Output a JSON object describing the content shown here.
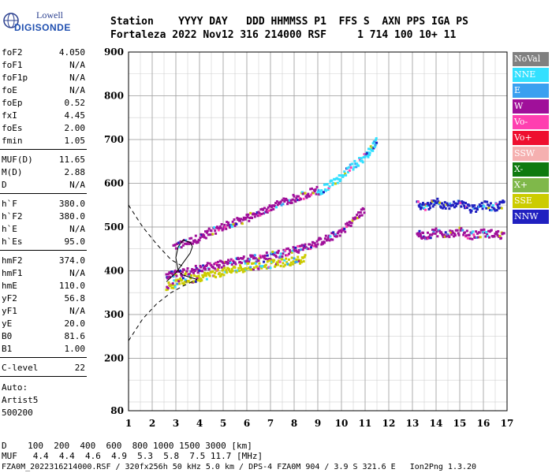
{
  "logo": {
    "line1": "Lowell",
    "line2": "DIGISONDE"
  },
  "header": {
    "line1": "Station    YYYY DAY   DDD HHMMSS P1  FFS S  AXN PPS IGA PS",
    "line2": "Fortaleza 2022 Nov12 316 214000 RSF     1 714 100 10+ 11"
  },
  "parameters": [
    {
      "name": "foF2",
      "value": "4.050"
    },
    {
      "name": "foF1",
      "value": "N/A"
    },
    {
      "name": "foF1p",
      "value": "N/A"
    },
    {
      "name": "foE",
      "value": "N/A"
    },
    {
      "name": "foEp",
      "value": "0.52"
    },
    {
      "name": "fxI",
      "value": "4.45"
    },
    {
      "name": "foEs",
      "value": "2.00"
    },
    {
      "name": "fmin",
      "value": "1.05"
    },
    {
      "name": "MUF(D)",
      "value": "11.65"
    },
    {
      "name": "M(D)",
      "value": "2.88"
    },
    {
      "name": "D",
      "value": "N/A"
    },
    {
      "name": "h`F",
      "value": "380.0"
    },
    {
      "name": "h`F2",
      "value": "380.0"
    },
    {
      "name": "h`E",
      "value": "N/A"
    },
    {
      "name": "h`Es",
      "value": "95.0"
    },
    {
      "name": "hmF2",
      "value": "374.0"
    },
    {
      "name": "hmF1",
      "value": "N/A"
    },
    {
      "name": "hmE",
      "value": "110.0"
    },
    {
      "name": "yF2",
      "value": "56.8"
    },
    {
      "name": "yF1",
      "value": "N/A"
    },
    {
      "name": "yE",
      "value": "20.0"
    },
    {
      "name": "B0",
      "value": "81.6"
    },
    {
      "name": "B1",
      "value": "1.00"
    },
    {
      "name": "C-level",
      "value": "22"
    }
  ],
  "autoscaling": {
    "line1": "Auto:",
    "line2": "Artist5",
    "line3": "500200"
  },
  "legend": [
    {
      "label": "NoVal",
      "color": "#808080"
    },
    {
      "label": "NNE",
      "color": "#33e0ff"
    },
    {
      "label": "E",
      "color": "#3aa0f0"
    },
    {
      "label": "W",
      "color": "#a0109a"
    },
    {
      "label": "Vo-",
      "color": "#ff3fb0"
    },
    {
      "label": "Vo+",
      "color": "#ee0f2f"
    },
    {
      "label": "SSW",
      "color": "#f5b0b0"
    },
    {
      "label": "X-",
      "color": "#0f7a0f"
    },
    {
      "label": "X+",
      "color": "#7fb84a"
    },
    {
      "label": "SSE",
      "color": "#cccc00"
    },
    {
      "label": "NNW",
      "color": "#2020c0"
    }
  ],
  "footer": {
    "d_line": "D    100  200  400  600  800 1000 1500 3000 [km]",
    "muf_line": "MUF   4.4  4.4  4.6  4.9  5.3  5.8  7.5 11.7 [MHz]",
    "info_line": "FZA0M_2022316214000.RSF / 320fx256h 50 kHz 5.0 km / DPS-4 FZA0M 904 / 3.9 S 321.6 E   Ion2Png 1.3.20"
  },
  "chart_data": {
    "type": "scatter",
    "xlim": [
      1,
      17
    ],
    "ylim": [
      80,
      900
    ],
    "x_ticks": [
      1,
      2,
      3,
      4,
      5,
      6,
      7,
      8,
      9,
      10,
      11,
      12,
      13,
      14,
      15,
      16,
      17
    ],
    "y_ticks": [
      80,
      200,
      300,
      400,
      500,
      600,
      700,
      800,
      900
    ],
    "grid": true,
    "legend_position": "right",
    "profile_line": [
      [
        2.6,
        375
      ],
      [
        2.8,
        385
      ],
      [
        3.0,
        395
      ],
      [
        3.2,
        410
      ],
      [
        3.4,
        425
      ],
      [
        3.6,
        440
      ],
      [
        3.7,
        455
      ],
      [
        3.6,
        465
      ],
      [
        3.3,
        470
      ],
      [
        3.1,
        455
      ],
      [
        3.0,
        430
      ],
      [
        3.1,
        400
      ],
      [
        3.3,
        390
      ],
      [
        3.6,
        385
      ],
      [
        3.9,
        380
      ]
    ],
    "profile_dashed_upper": [
      [
        1.0,
        550
      ],
      [
        1.6,
        500
      ],
      [
        2.2,
        460
      ],
      [
        2.8,
        425
      ],
      [
        3.3,
        410
      ]
    ],
    "profile_dashed_lower": [
      [
        1.0,
        240
      ],
      [
        1.6,
        290
      ],
      [
        2.2,
        325
      ],
      [
        2.8,
        350
      ],
      [
        3.3,
        365
      ],
      [
        3.9,
        380
      ]
    ],
    "traces": [
      {
        "name": "W",
        "color": "#a0109a",
        "points": [
          [
            2.9,
            455
          ],
          [
            3.5,
            465
          ],
          [
            4.0,
            475
          ],
          [
            4.5,
            490
          ],
          [
            5.0,
            500
          ],
          [
            5.5,
            510
          ],
          [
            6.0,
            520
          ],
          [
            6.5,
            530
          ],
          [
            7.0,
            545
          ],
          [
            7.5,
            555
          ],
          [
            8.0,
            565
          ],
          [
            8.5,
            575
          ],
          [
            9.0,
            585
          ]
        ]
      },
      {
        "name": "W",
        "color": "#a0109a",
        "points": [
          [
            2.6,
            385
          ],
          [
            3.0,
            393
          ],
          [
            3.5,
            400
          ],
          [
            4.0,
            405
          ],
          [
            4.5,
            410
          ],
          [
            5.0,
            415
          ],
          [
            5.5,
            420
          ],
          [
            6.0,
            425
          ],
          [
            6.5,
            430
          ],
          [
            7.0,
            435
          ],
          [
            7.5,
            440
          ],
          [
            8.0,
            447
          ],
          [
            8.5,
            455
          ],
          [
            9.0,
            465
          ],
          [
            9.5,
            475
          ],
          [
            10.0,
            490
          ],
          [
            10.5,
            515
          ],
          [
            11.0,
            540
          ]
        ]
      },
      {
        "name": "NNE",
        "color": "#33e0ff",
        "points": [
          [
            9.0,
            580
          ],
          [
            9.5,
            595
          ],
          [
            10.0,
            615
          ],
          [
            10.5,
            640
          ],
          [
            11.0,
            660
          ],
          [
            11.3,
            680
          ],
          [
            11.5,
            700
          ]
        ]
      },
      {
        "name": "SSE",
        "color": "#cccc00",
        "points": [
          [
            2.6,
            365
          ],
          [
            3.0,
            370
          ],
          [
            3.5,
            378
          ],
          [
            4.0,
            385
          ],
          [
            4.5,
            392
          ],
          [
            5.0,
            397
          ],
          [
            5.5,
            402
          ],
          [
            6.0,
            408
          ],
          [
            6.5,
            412
          ],
          [
            7.0,
            415
          ],
          [
            7.5,
            418
          ],
          [
            8.0,
            422
          ],
          [
            8.5,
            428
          ]
        ]
      },
      {
        "name": "NNW",
        "color": "#2020c0",
        "points": [
          [
            13.2,
            550
          ],
          [
            13.6,
            545
          ],
          [
            14.0,
            560
          ],
          [
            14.5,
            545
          ],
          [
            15.0,
            555
          ],
          [
            15.5,
            540
          ],
          [
            16.0,
            550
          ],
          [
            16.5,
            545
          ],
          [
            16.9,
            555
          ]
        ]
      },
      {
        "name": "W",
        "color": "#a0109a",
        "points": [
          [
            13.2,
            485
          ],
          [
            13.6,
            480
          ],
          [
            14.0,
            488
          ],
          [
            14.5,
            482
          ],
          [
            15.0,
            490
          ],
          [
            15.5,
            480
          ],
          [
            16.0,
            486
          ],
          [
            16.5,
            484
          ],
          [
            16.9,
            480
          ]
        ]
      }
    ]
  }
}
